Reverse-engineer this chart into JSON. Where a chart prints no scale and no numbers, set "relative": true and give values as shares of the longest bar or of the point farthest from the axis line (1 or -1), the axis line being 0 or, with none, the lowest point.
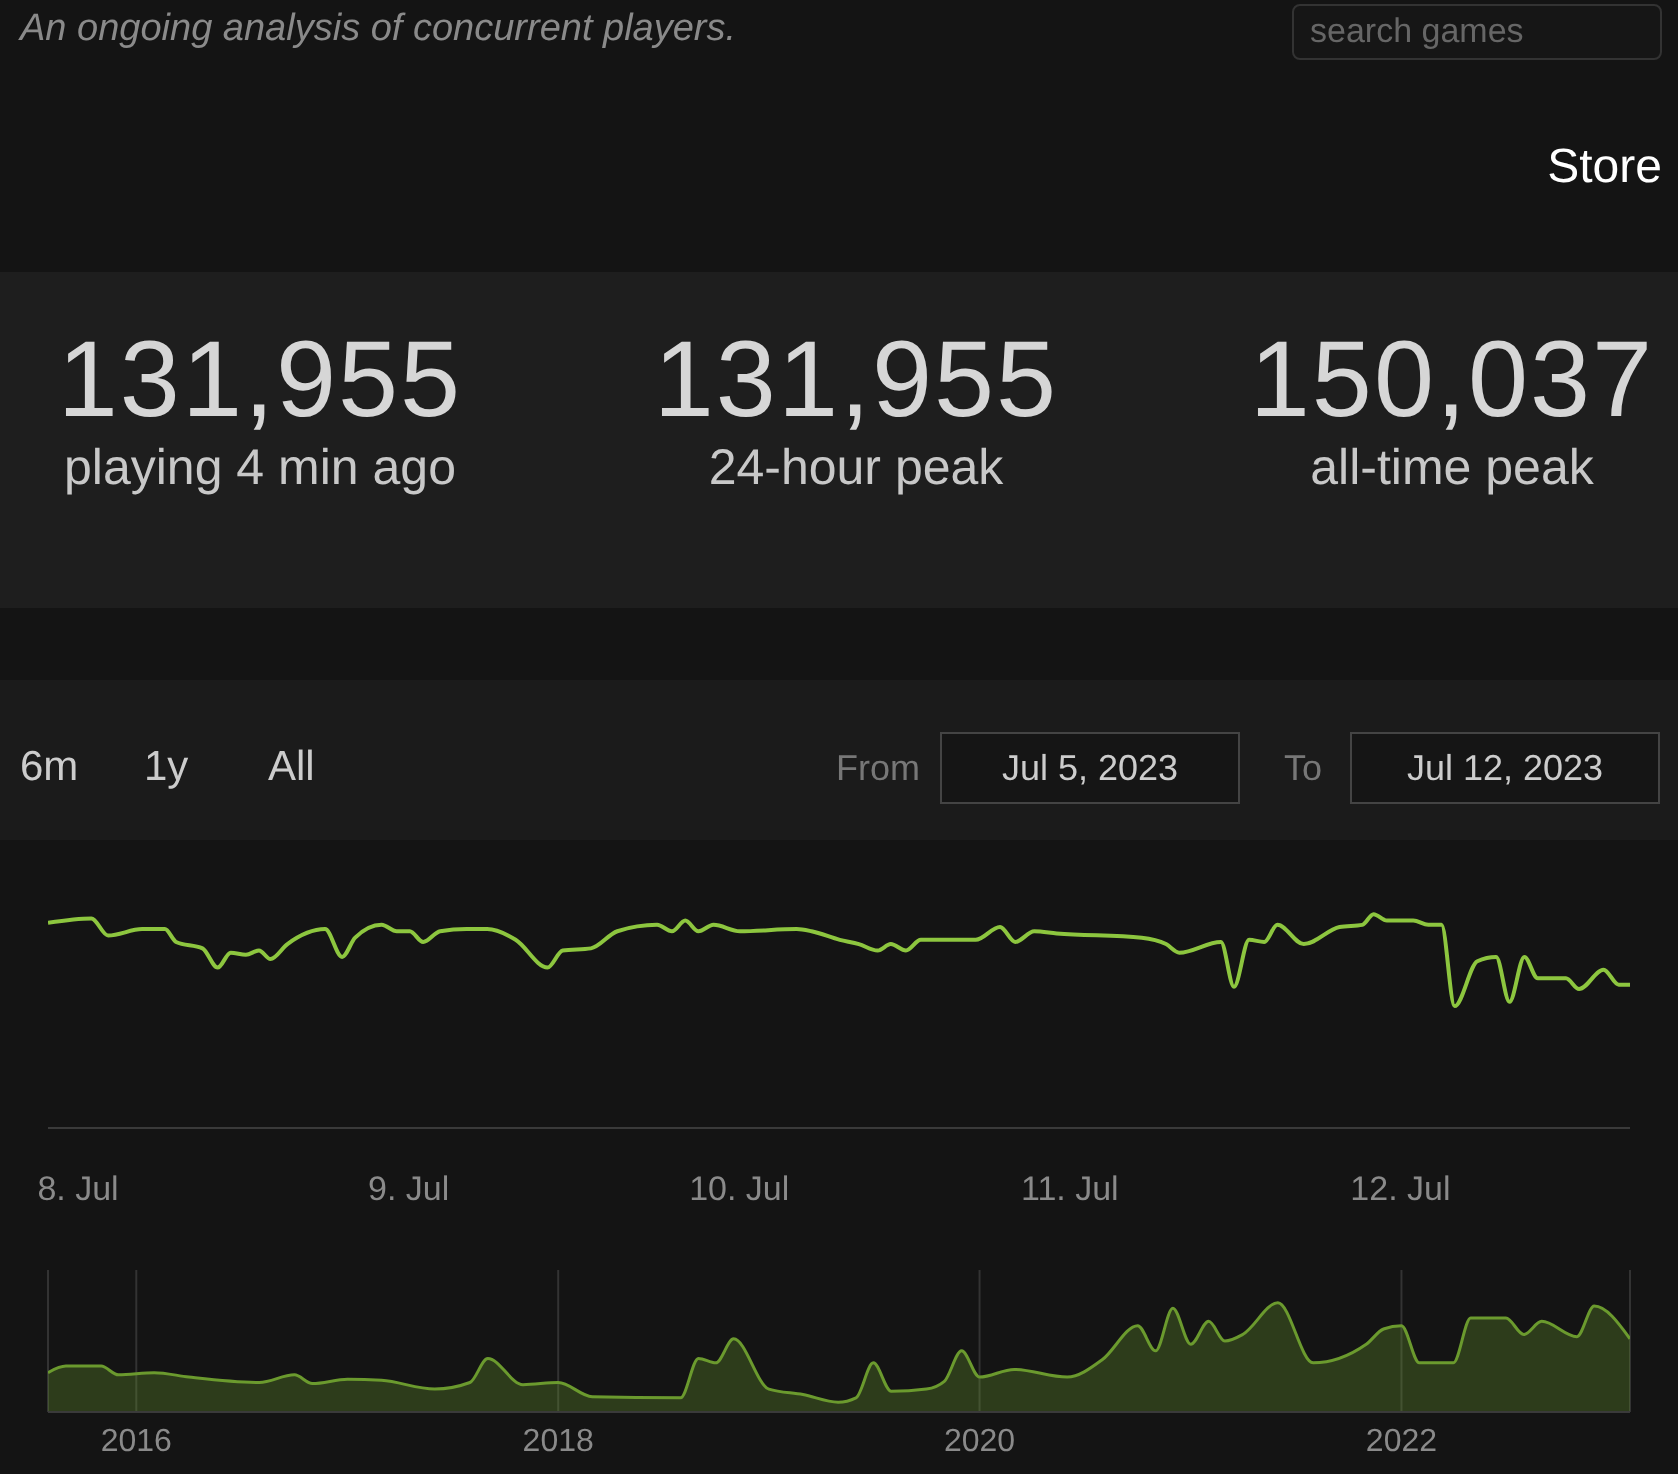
{
  "chart_data": [
    {
      "type": "other",
      "subtitle": "An ongoing analysis of concurrent players.",
      "annotations": [
        "Store",
        "search games",
        "131,955",
        "playing 4 min ago",
        "131,955",
        "24-hour peak",
        "150,037",
        "all-time peak"
      ]
    },
    {
      "type": "line",
      "relative": true,
      "color": "#8dc63f",
      "annotations": [
        "6m",
        "1y",
        "All",
        "From",
        "Jul 5, 2023",
        "To",
        "Jul 12, 2023"
      ],
      "x": [
        "2023-07-07T21:49",
        "2023-07-08T00:58",
        "2023-07-08T02:11",
        "2023-07-08T04:39",
        "2023-07-08T06:18",
        "2023-07-08T07:07",
        "2023-07-08T09:02",
        "2023-07-08T10:08",
        "2023-07-08T11:05",
        "2023-07-08T12:11",
        "2023-07-08T13:08",
        "2023-07-08T13:58",
        "2023-07-08T15:12",
        "2023-07-08T17:56",
        "2023-07-08T19:10",
        "2023-07-08T20:07",
        "2023-07-08T22:02",
        "2023-07-08T23:08",
        "2023-07-09T00:05",
        "2023-07-09T01:03",
        "2023-07-09T02:17",
        "2023-07-09T04:12",
        "2023-07-09T05:42",
        "2023-07-09T07:46",
        "2023-07-09T10:05",
        "2023-07-09T11:11",
        "2023-07-09T13:14",
        "2023-07-09T15:09",
        "2023-07-09T18:02",
        "2023-07-09T19:07",
        "2023-07-09T20:05",
        "2023-07-09T21:02",
        "2023-07-09T22:08",
        "2023-07-10T00:03",
        "2023-07-10T04:10",
        "2023-07-10T05:15",
        "2023-07-10T07:18",
        "2023-07-10T08:41",
        "2023-07-10T10:03",
        "2023-07-10T11:00",
        "2023-07-10T12:06",
        "2023-07-10T13:11",
        "2023-07-10T17:10",
        "2023-07-10T18:56",
        "2023-07-10T20:02",
        "2023-07-10T21:25",
        "2023-07-10T23:03",
        "2023-07-11T05:13",
        "2023-07-11T06:59",
        "2023-07-11T07:57",
        "2023-07-11T10:58",
        "2023-07-11T11:55",
        "2023-07-11T13:01",
        "2023-07-11T14:07",
        "2023-07-11T15:04",
        "2023-07-11T16:59",
        "2023-07-11T19:35",
        "2023-07-11T21:14",
        "2023-07-11T22:03",
        "2023-07-11T23:01",
        "2023-07-12T00:56",
        "2023-07-12T02:01",
        "2023-07-12T02:59",
        "2023-07-12T03:56",
        "2023-07-12T05:35",
        "2023-07-12T06:57",
        "2023-07-12T07:55",
        "2023-07-12T09:00",
        "2023-07-12T09:58",
        "2023-07-12T12:01",
        "2023-07-12T12:58",
        "2023-07-12T14:45",
        "2023-07-12T15:51",
        "2023-07-12T16:40"
      ],
      "values": [
        0.96,
        0.98,
        0.9,
        0.93,
        0.93,
        0.87,
        0.84,
        0.75,
        0.82,
        0.81,
        0.83,
        0.79,
        0.86,
        0.93,
        0.8,
        0.89,
        0.95,
        0.92,
        0.92,
        0.87,
        0.92,
        0.93,
        0.93,
        0.88,
        0.75,
        0.83,
        0.84,
        0.92,
        0.95,
        0.92,
        0.97,
        0.92,
        0.95,
        0.92,
        0.93,
        0.92,
        0.88,
        0.86,
        0.83,
        0.86,
        0.83,
        0.88,
        0.88,
        0.94,
        0.87,
        0.92,
        0.91,
        0.89,
        0.86,
        0.82,
        0.87,
        0.66,
        0.88,
        0.87,
        0.95,
        0.86,
        0.94,
        0.95,
        1.0,
        0.97,
        0.97,
        0.95,
        0.95,
        0.57,
        0.78,
        0.8,
        0.59,
        0.8,
        0.7,
        0.7,
        0.65,
        0.74,
        0.67,
        0.67
      ],
      "xlim": [
        "2023-07-07T21:49",
        "2023-07-12T16:40"
      ],
      "xticks": [
        {
          "value": "2023-07-08",
          "label": "8. Jul"
        },
        {
          "value": "2023-07-09",
          "label": "9. Jul"
        },
        {
          "value": "2023-07-10",
          "label": "10. Jul"
        },
        {
          "value": "2023-07-11",
          "label": "11. Jul"
        },
        {
          "value": "2023-07-12",
          "label": "12. Jul"
        }
      ]
    },
    {
      "type": "area",
      "relative": true,
      "grid": "x",
      "color": "#6b9a2e",
      "x": [
        "2015-08",
        "2015-09",
        "2015-11",
        "2015-12",
        "2016-02",
        "2016-04",
        "2016-08",
        "2016-10",
        "2016-11",
        "2017-01",
        "2017-03",
        "2017-06",
        "2017-08",
        "2017-09",
        "2017-11",
        "2018-01",
        "2018-03",
        "2018-08",
        "2018-09",
        "2018-10",
        "2018-11",
        "2019-01",
        "2019-03",
        "2019-05",
        "2019-06",
        "2019-07",
        "2019-08",
        "2019-10",
        "2019-11",
        "2019-12",
        "2020-01",
        "2020-03",
        "2020-06",
        "2020-08",
        "2020-10",
        "2020-11",
        "2020-12",
        "2021-01",
        "2021-02",
        "2021-03",
        "2021-04",
        "2021-06",
        "2021-08",
        "2021-11",
        "2021-12",
        "2022-01",
        "2022-02",
        "2022-04",
        "2022-05",
        "2022-07",
        "2022-08",
        "2022-09",
        "2022-11",
        "2022-12",
        "2023-02"
      ],
      "values": [
        0.36,
        0.42,
        0.42,
        0.34,
        0.36,
        0.32,
        0.27,
        0.34,
        0.26,
        0.3,
        0.29,
        0.21,
        0.27,
        0.49,
        0.25,
        0.27,
        0.14,
        0.13,
        0.49,
        0.45,
        0.67,
        0.21,
        0.16,
        0.09,
        0.13,
        0.45,
        0.19,
        0.21,
        0.28,
        0.56,
        0.32,
        0.39,
        0.32,
        0.48,
        0.79,
        0.56,
        0.95,
        0.62,
        0.83,
        0.65,
        0.71,
        1.0,
        0.45,
        0.62,
        0.76,
        0.79,
        0.45,
        0.45,
        0.86,
        0.86,
        0.71,
        0.83,
        0.69,
        0.97,
        0.67
      ],
      "xlim": [
        "2015-08",
        "2023-02"
      ],
      "xticks": [
        {
          "value": "2016",
          "label": "2016"
        },
        {
          "value": "2018",
          "label": "2018"
        },
        {
          "value": "2020",
          "label": "2020"
        },
        {
          "value": "2022",
          "label": "2022"
        }
      ]
    }
  ]
}
